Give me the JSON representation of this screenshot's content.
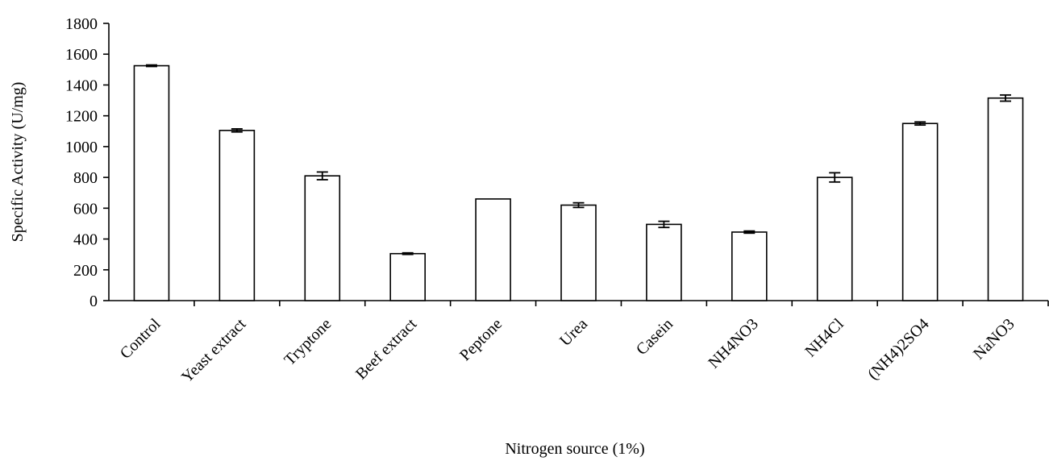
{
  "chart_data": {
    "type": "bar",
    "title": "",
    "xlabel": "Nitrogen source (1%)",
    "ylabel": "Specific Activity (U/mg)",
    "ylim": [
      0,
      1800
    ],
    "yticks": [
      0,
      200,
      400,
      600,
      800,
      1000,
      1200,
      1400,
      1600,
      1800
    ],
    "grid": false,
    "categories": [
      "Control",
      "Yeast extract",
      "Tryptone",
      "Beef extract",
      "Peptone",
      "Urea",
      "Casein",
      "NH4NO3",
      "NH4Cl",
      "(NH4)2SO4",
      "NaNO3"
    ],
    "values": [
      1525,
      1105,
      810,
      305,
      660,
      620,
      495,
      445,
      800,
      1150,
      1315
    ],
    "errors": [
      5,
      10,
      25,
      5,
      0,
      15,
      20,
      7,
      30,
      10,
      20
    ],
    "bar_fill": "#ffffff",
    "bar_stroke": "#000000"
  }
}
